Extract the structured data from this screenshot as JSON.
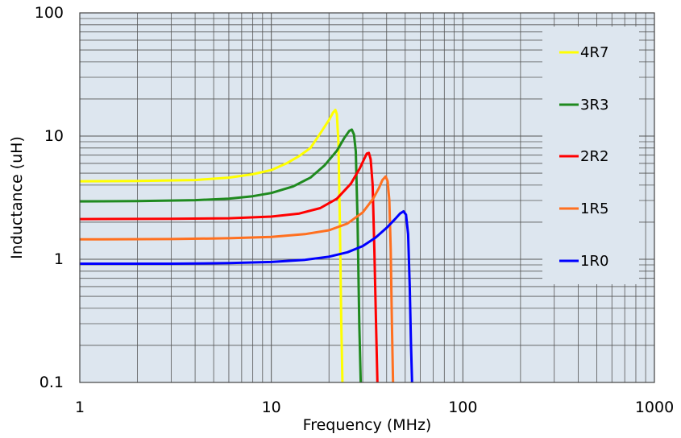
{
  "chart_data": {
    "type": "line",
    "xscale": "log",
    "yscale": "log",
    "xlim": [
      1,
      1000
    ],
    "ylim": [
      0.1,
      100
    ],
    "xlabel": "Frequency (MHz)",
    "ylabel": "Inductance (uH)",
    "xticks": [
      "1",
      "10",
      "100",
      "1000"
    ],
    "yticks": [
      "0.1",
      "1",
      "10",
      "100"
    ],
    "grid": true,
    "legend_position": "right",
    "colors": {
      "plot_background": "#dde6ef",
      "grid": "#555555",
      "legend_background": "#dde6ef"
    },
    "series": [
      {
        "name": "4R7",
        "color": "#ffff00",
        "x": [
          1,
          2,
          4,
          6,
          8,
          10,
          12,
          14,
          16,
          18,
          20,
          21,
          21.6,
          22.0,
          22.4,
          22.8,
          23.2,
          23.5
        ],
        "y": [
          4.3,
          4.32,
          4.4,
          4.6,
          4.9,
          5.3,
          6.0,
          6.9,
          8.0,
          10.5,
          13.5,
          15.5,
          16.3,
          15.0,
          9.0,
          2.0,
          0.3,
          0.1
        ]
      },
      {
        "name": "3R3",
        "color": "#1f8a1f",
        "x": [
          1,
          2,
          4,
          6,
          8,
          10,
          13,
          16,
          19,
          22,
          24,
          25.5,
          26.3,
          27.0,
          27.6,
          28.2,
          28.8,
          29.3
        ],
        "y": [
          2.95,
          2.97,
          3.02,
          3.1,
          3.25,
          3.45,
          3.9,
          4.6,
          5.8,
          7.6,
          9.6,
          11.0,
          11.3,
          10.3,
          7.5,
          2.0,
          0.3,
          0.1
        ]
      },
      {
        "name": "2R2",
        "color": "#ff0000",
        "x": [
          1,
          3,
          6,
          10,
          14,
          18,
          22,
          26,
          29,
          30.5,
          31.5,
          32.3,
          33.0,
          33.8,
          34.5,
          35.2,
          35.8
        ],
        "y": [
          2.12,
          2.13,
          2.15,
          2.22,
          2.35,
          2.6,
          3.1,
          4.1,
          5.5,
          6.5,
          7.2,
          7.3,
          6.5,
          4.0,
          1.2,
          0.3,
          0.1
        ]
      },
      {
        "name": "1R5",
        "color": "#ff7020",
        "x": [
          1,
          3,
          6,
          10,
          15,
          20,
          25,
          30,
          34,
          36.5,
          38,
          39.5,
          40.5,
          41.3,
          42.0,
          42.6,
          43.2
        ],
        "y": [
          1.45,
          1.46,
          1.48,
          1.52,
          1.6,
          1.72,
          1.95,
          2.4,
          3.1,
          3.8,
          4.4,
          4.7,
          4.3,
          3.0,
          1.2,
          0.3,
          0.1
        ]
      },
      {
        "name": "1R0",
        "color": "#0000ff",
        "x": [
          1,
          3,
          6,
          10,
          15,
          20,
          25,
          30,
          35,
          40,
          44,
          47,
          49,
          50.5,
          51.8,
          52.8,
          53.6,
          54.3
        ],
        "y": [
          0.92,
          0.92,
          0.93,
          0.95,
          0.99,
          1.05,
          1.14,
          1.28,
          1.5,
          1.8,
          2.1,
          2.35,
          2.45,
          2.3,
          1.6,
          0.6,
          0.2,
          0.1
        ]
      }
    ]
  }
}
